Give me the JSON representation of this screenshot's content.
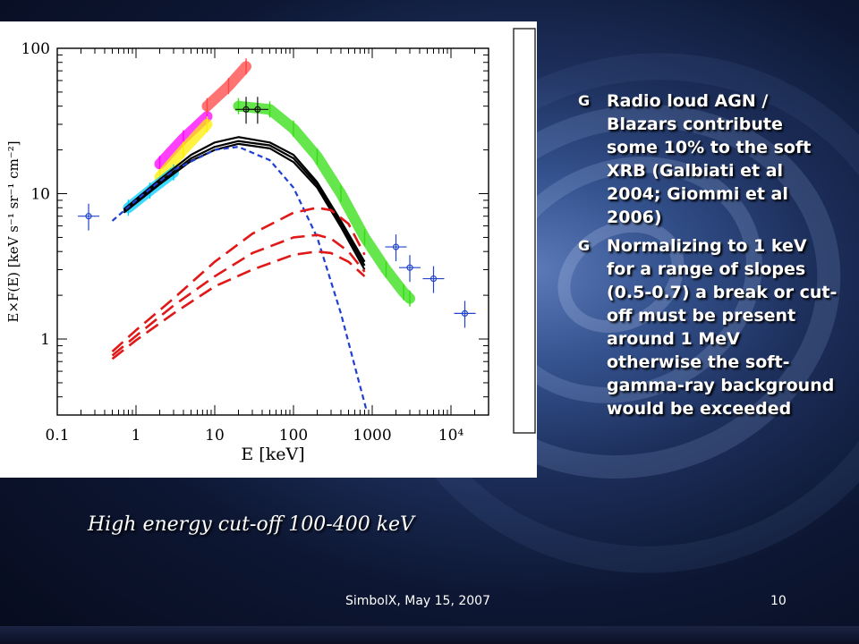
{
  "chart_data": {
    "type": "scatter",
    "xscale": "log",
    "yscale": "log",
    "xlim": [
      0.1,
      30000
    ],
    "ylim": [
      0.3,
      100
    ],
    "xlabel": "E [keV]",
    "ylabel": "E×F(E) [keV s⁻¹ sr⁻¹ cm⁻²]",
    "x_tick_labels": [
      "0.1",
      "1",
      "10",
      "100",
      "1000",
      "10⁴"
    ],
    "y_tick_labels": [
      "1",
      "10",
      "100"
    ],
    "series": [
      {
        "color": "#000000",
        "style": "solid",
        "x": [
          0.7,
          2,
          5,
          10,
          20,
          50,
          100,
          200,
          400,
          800
        ],
        "y": [
          7.8,
          12.5,
          18.5,
          22.5,
          24.5,
          22.5,
          18.5,
          12,
          6.5,
          3.4
        ]
      },
      {
        "color": "#000000",
        "style": "solid",
        "x": [
          0.7,
          2,
          5,
          10,
          20,
          50,
          100,
          200,
          400,
          800
        ],
        "y": [
          7.6,
          12,
          17.5,
          21,
          23,
          21.5,
          17.5,
          11.5,
          6.2,
          3.2
        ]
      },
      {
        "color": "#000000",
        "style": "solid",
        "x": [
          0.7,
          2,
          5,
          10,
          20,
          50,
          100,
          200,
          400,
          800
        ],
        "y": [
          7.4,
          11.6,
          16.8,
          20,
          22,
          20.5,
          16.5,
          11,
          5.9,
          3.0
        ]
      },
      {
        "color": "#1f3fd1",
        "style": "dashed",
        "x": [
          0.5,
          1,
          3,
          10,
          20,
          50,
          100,
          200,
          400,
          600,
          850
        ],
        "y": [
          6.5,
          9,
          14.5,
          20,
          21,
          17,
          11,
          5,
          1.5,
          0.65,
          0.32
        ]
      },
      {
        "color": "#e01818",
        "style": "longdash",
        "x": [
          0.5,
          1,
          3,
          10,
          30,
          100,
          200,
          300,
          500,
          800
        ],
        "y": [
          0.82,
          1.15,
          1.9,
          3.4,
          5.3,
          7.4,
          8.0,
          7.7,
          6.2,
          3.8
        ]
      },
      {
        "color": "#e01818",
        "style": "longdash",
        "x": [
          0.5,
          1,
          3,
          10,
          30,
          100,
          200,
          300,
          500,
          800
        ],
        "y": [
          0.77,
          1.05,
          1.7,
          2.7,
          3.9,
          5.0,
          5.2,
          4.9,
          4.0,
          2.9
        ]
      },
      {
        "color": "#e01818",
        "style": "longdash",
        "x": [
          0.5,
          1,
          3,
          10,
          30,
          100,
          200,
          300,
          500,
          800
        ],
        "y": [
          0.73,
          0.98,
          1.5,
          2.3,
          3.0,
          3.8,
          4.0,
          3.9,
          3.4,
          2.7
        ]
      }
    ],
    "data_points": [
      {
        "color": "#2244cc",
        "x": 0.25,
        "y": 7.0
      },
      {
        "color": "#2244cc",
        "x": 2000,
        "y": 4.3
      },
      {
        "color": "#2244cc",
        "x": 3000,
        "y": 3.1
      },
      {
        "color": "#2244cc",
        "x": 6000,
        "y": 2.6
      },
      {
        "color": "#2244cc",
        "x": 15000,
        "y": 1.5
      },
      {
        "color": "#111111",
        "x": 25,
        "y": 38
      },
      {
        "color": "#111111",
        "x": 35,
        "y": 38
      }
    ],
    "data_bands": [
      {
        "color": "#33dd11",
        "x": [
          20,
          50,
          100,
          200,
          400,
          800,
          1500,
          2500,
          3000
        ],
        "y": [
          40,
          38,
          28,
          18,
          10,
          5,
          3,
          2.1,
          1.9
        ]
      },
      {
        "color": "#ff00ff",
        "x": [
          2,
          4,
          8
        ],
        "y": [
          16,
          24,
          34
        ]
      },
      {
        "color": "#ffee00",
        "x": [
          2,
          4,
          8
        ],
        "y": [
          13,
          20,
          30
        ]
      },
      {
        "color": "#00ccff",
        "x": [
          0.8,
          1.5,
          3
        ],
        "y": [
          8.0,
          10.5,
          14
        ]
      },
      {
        "color": "#ff4444",
        "x": [
          8,
          15,
          25
        ],
        "y": [
          40,
          55,
          75
        ]
      }
    ]
  },
  "bullets": [
    {
      "text": "Radio loud AGN / Blazars contribute some 10% to the soft XRB (Galbiati et al 2004; Giommi et al 2006)"
    },
    {
      "text": "Normalizing to 1 keV for a range of slopes (0.5-0.7) a break or cut-off must be present around 1 MeV otherwise the soft-gamma-ray background would be exceeded"
    }
  ],
  "bullet_icon": "G",
  "caption": "High energy cut-off 100-400 keV",
  "footer": "SimbolX, May 15, 2007",
  "slide_number": "10"
}
